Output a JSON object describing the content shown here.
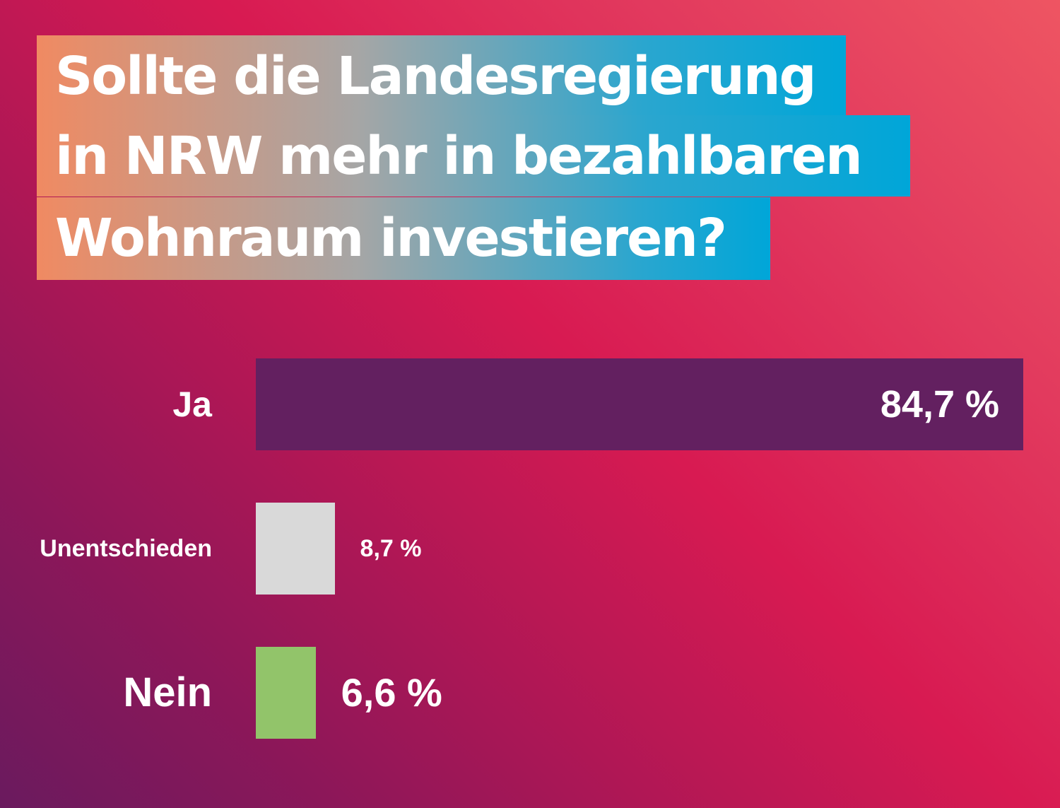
{
  "title": {
    "lines": [
      "Sollte die Landesregierung",
      "in NRW mehr in bezahlbaren",
      "Wohnraum investieren?"
    ]
  },
  "colors": {
    "ja": "#632060",
    "unentschieden": "#d9d9d9",
    "nein": "#92c46a",
    "text": "#ffffff"
  },
  "chart_data": {
    "type": "bar",
    "orientation": "horizontal",
    "categories": [
      "Ja",
      "Unentschieden",
      "Nein"
    ],
    "values": [
      84.7,
      8.7,
      6.6
    ],
    "value_labels": [
      "84,7 %",
      "8,7 %",
      "6,6 %"
    ],
    "title": "Sollte die Landesregierung in NRW mehr in bezahlbaren Wohnraum investieren?",
    "xlabel": "",
    "ylabel": "",
    "grid": false
  }
}
